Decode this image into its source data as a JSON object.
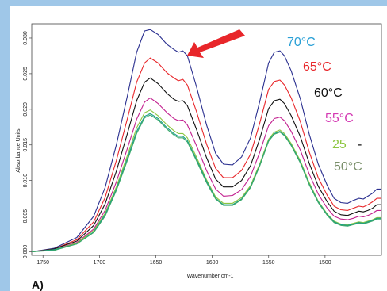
{
  "chart_data": {
    "type": "line",
    "xlabel": "Wavenumber cm-1",
    "ylabel": "Absorbance Units",
    "xlim": [
      1760,
      1450
    ],
    "ylim": [
      -0.0005,
      0.032
    ],
    "x_ticks": [
      "1750",
      "1700",
      "1650",
      "1600",
      "1550",
      "1500"
    ],
    "y_ticks": [
      "0.000",
      "0.005",
      "0.010",
      "0.015",
      "0.020",
      "0.025",
      "0.030"
    ],
    "x_tick_values": [
      1750,
      1700,
      1650,
      1600,
      1550,
      1500
    ],
    "y_tick_values": [
      0,
      0.005,
      0.01,
      0.015,
      0.02,
      0.025,
      0.03
    ],
    "annotations": [
      {
        "text": "70°C",
        "color": "#2aa0d6"
      },
      {
        "text": "65°C",
        "color": "#e8262a"
      },
      {
        "text": "60°C",
        "color": "#111111"
      },
      {
        "text": "55°C",
        "color": "#d43ab3"
      },
      {
        "text": "25",
        "color": "#8cc63f"
      },
      {
        "text": "-",
        "color": "#111111"
      },
      {
        "text": "50°C",
        "color": "#7a8f6a"
      }
    ],
    "arrow_color": "#e8262a",
    "panel_label": "A)",
    "series": [
      {
        "color": "#2a2f8f",
        "x": [
          1760,
          1740,
          1720,
          1705,
          1695,
          1685,
          1675,
          1667,
          1660,
          1655,
          1648,
          1640,
          1634,
          1630,
          1626,
          1622,
          1614,
          1605,
          1597,
          1590,
          1582,
          1574,
          1566,
          1558,
          1550,
          1545,
          1540,
          1536,
          1530,
          1522,
          1514,
          1506,
          1498,
          1492,
          1486,
          1480,
          1475,
          1470,
          1466,
          1462,
          1458,
          1454,
          1450
        ],
        "y": [
          0.0,
          0.0005,
          0.002,
          0.005,
          0.009,
          0.015,
          0.022,
          0.028,
          0.031,
          0.0312,
          0.0305,
          0.0291,
          0.0284,
          0.028,
          0.0282,
          0.0275,
          0.0232,
          0.0178,
          0.0138,
          0.0123,
          0.0122,
          0.0133,
          0.016,
          0.021,
          0.0265,
          0.028,
          0.0282,
          0.0275,
          0.0254,
          0.0215,
          0.0165,
          0.0123,
          0.0093,
          0.0075,
          0.0069,
          0.0068,
          0.0072,
          0.0075,
          0.0074,
          0.0078,
          0.0082,
          0.0088,
          0.0088
        ]
      },
      {
        "color": "#e8262a",
        "x": [
          1760,
          1740,
          1720,
          1705,
          1695,
          1685,
          1675,
          1667,
          1660,
          1655,
          1648,
          1640,
          1634,
          1630,
          1626,
          1622,
          1614,
          1605,
          1597,
          1590,
          1582,
          1574,
          1566,
          1558,
          1550,
          1545,
          1540,
          1536,
          1530,
          1522,
          1514,
          1506,
          1498,
          1492,
          1486,
          1480,
          1475,
          1470,
          1466,
          1462,
          1458,
          1454,
          1450
        ],
        "y": [
          0.0,
          0.0004,
          0.0017,
          0.0042,
          0.0076,
          0.0128,
          0.0188,
          0.0238,
          0.0265,
          0.0272,
          0.0265,
          0.0251,
          0.0244,
          0.024,
          0.0242,
          0.0234,
          0.0197,
          0.0151,
          0.0117,
          0.0104,
          0.0104,
          0.0114,
          0.0137,
          0.018,
          0.0228,
          0.0239,
          0.0241,
          0.0234,
          0.0216,
          0.0183,
          0.014,
          0.0104,
          0.0079,
          0.0064,
          0.0059,
          0.0058,
          0.0061,
          0.0064,
          0.0063,
          0.0066,
          0.007,
          0.0075,
          0.0075
        ]
      },
      {
        "color": "#111111",
        "x": [
          1760,
          1740,
          1720,
          1705,
          1695,
          1685,
          1675,
          1667,
          1660,
          1655,
          1648,
          1640,
          1634,
          1630,
          1626,
          1622,
          1614,
          1605,
          1597,
          1590,
          1582,
          1574,
          1566,
          1558,
          1550,
          1545,
          1540,
          1536,
          1530,
          1522,
          1514,
          1506,
          1498,
          1492,
          1486,
          1480,
          1475,
          1470,
          1466,
          1462,
          1458,
          1454,
          1450
        ],
        "y": [
          0.0,
          0.0004,
          0.0015,
          0.0037,
          0.0067,
          0.0113,
          0.0167,
          0.0212,
          0.0238,
          0.0244,
          0.0236,
          0.0222,
          0.0214,
          0.0211,
          0.0212,
          0.0205,
          0.0172,
          0.0132,
          0.0102,
          0.0091,
          0.0091,
          0.01,
          0.0121,
          0.0158,
          0.0201,
          0.0212,
          0.0214,
          0.0208,
          0.0191,
          0.0162,
          0.0124,
          0.0092,
          0.007,
          0.0057,
          0.0052,
          0.0051,
          0.0054,
          0.0057,
          0.0056,
          0.0058,
          0.0061,
          0.0066,
          0.0066
        ]
      },
      {
        "color": "#c2208f",
        "x": [
          1760,
          1740,
          1720,
          1705,
          1695,
          1685,
          1675,
          1667,
          1660,
          1655,
          1648,
          1640,
          1634,
          1630,
          1626,
          1622,
          1614,
          1605,
          1597,
          1590,
          1582,
          1574,
          1566,
          1558,
          1550,
          1545,
          1540,
          1536,
          1530,
          1522,
          1514,
          1506,
          1498,
          1492,
          1486,
          1480,
          1475,
          1470,
          1466,
          1462,
          1458,
          1454,
          1450
        ],
        "y": [
          0.0,
          0.0003,
          0.0013,
          0.0032,
          0.0058,
          0.0098,
          0.0146,
          0.0186,
          0.021,
          0.0216,
          0.0208,
          0.0195,
          0.0187,
          0.0184,
          0.0185,
          0.0178,
          0.0149,
          0.0114,
          0.0088,
          0.0078,
          0.0079,
          0.0087,
          0.0106,
          0.0139,
          0.0177,
          0.0187,
          0.0189,
          0.0184,
          0.0169,
          0.0143,
          0.0109,
          0.0081,
          0.0061,
          0.005,
          0.0046,
          0.0045,
          0.0047,
          0.005,
          0.0049,
          0.0051,
          0.0054,
          0.0058,
          0.0058
        ]
      },
      {
        "color": "#8cc63f",
        "x": [
          1760,
          1740,
          1720,
          1705,
          1695,
          1685,
          1675,
          1667,
          1660,
          1655,
          1648,
          1640,
          1634,
          1630,
          1626,
          1622,
          1614,
          1605,
          1597,
          1590,
          1582,
          1574,
          1566,
          1558,
          1550,
          1545,
          1540,
          1536,
          1530,
          1522,
          1514,
          1506,
          1498,
          1492,
          1486,
          1480,
          1475,
          1470,
          1466,
          1462,
          1458,
          1454,
          1450
        ],
        "y": [
          0.0,
          0.0003,
          0.0012,
          0.003,
          0.0054,
          0.0091,
          0.0136,
          0.0174,
          0.0195,
          0.0199,
          0.0191,
          0.0178,
          0.017,
          0.0166,
          0.0166,
          0.016,
          0.0133,
          0.0101,
          0.0077,
          0.0068,
          0.0068,
          0.0076,
          0.0093,
          0.0123,
          0.0158,
          0.0168,
          0.0171,
          0.0166,
          0.0152,
          0.0128,
          0.0097,
          0.0071,
          0.0053,
          0.0043,
          0.0039,
          0.0038,
          0.004,
          0.0042,
          0.0041,
          0.0043,
          0.0045,
          0.0048,
          0.0048
        ]
      },
      {
        "color": "#1a9e8a",
        "x": [
          1760,
          1740,
          1720,
          1705,
          1695,
          1685,
          1675,
          1667,
          1660,
          1655,
          1648,
          1640,
          1634,
          1630,
          1626,
          1622,
          1614,
          1605,
          1597,
          1590,
          1582,
          1574,
          1566,
          1558,
          1550,
          1545,
          1540,
          1536,
          1530,
          1522,
          1514,
          1506,
          1498,
          1492,
          1486,
          1480,
          1475,
          1470,
          1466,
          1462,
          1458,
          1454,
          1450
        ],
        "y": [
          0.0,
          0.0003,
          0.0011,
          0.0028,
          0.0052,
          0.0088,
          0.0132,
          0.0169,
          0.019,
          0.0194,
          0.0187,
          0.0174,
          0.0166,
          0.0162,
          0.0162,
          0.0156,
          0.013,
          0.0099,
          0.0075,
          0.0066,
          0.0066,
          0.0074,
          0.0091,
          0.0121,
          0.0156,
          0.0166,
          0.0169,
          0.0164,
          0.015,
          0.0126,
          0.0095,
          0.007,
          0.0052,
          0.0042,
          0.0038,
          0.0037,
          0.0039,
          0.0041,
          0.004,
          0.0042,
          0.0044,
          0.0047,
          0.0047
        ]
      },
      {
        "color": "#3aa86a",
        "x": [
          1760,
          1740,
          1720,
          1705,
          1695,
          1685,
          1675,
          1667,
          1660,
          1655,
          1648,
          1640,
          1634,
          1630,
          1626,
          1622,
          1614,
          1605,
          1597,
          1590,
          1582,
          1574,
          1566,
          1558,
          1550,
          1545,
          1540,
          1536,
          1530,
          1522,
          1514,
          1506,
          1498,
          1492,
          1486,
          1480,
          1475,
          1470,
          1466,
          1462,
          1458,
          1454,
          1450
        ],
        "y": [
          0.0,
          0.0002,
          0.0011,
          0.0027,
          0.005,
          0.0086,
          0.0129,
          0.0166,
          0.0188,
          0.0192,
          0.0185,
          0.0172,
          0.0164,
          0.016,
          0.016,
          0.0154,
          0.0128,
          0.0097,
          0.0074,
          0.0065,
          0.0065,
          0.0073,
          0.009,
          0.012,
          0.0155,
          0.0165,
          0.0168,
          0.0163,
          0.0149,
          0.0125,
          0.0094,
          0.0069,
          0.0051,
          0.0041,
          0.0037,
          0.0036,
          0.0038,
          0.004,
          0.0039,
          0.0041,
          0.0043,
          0.0046,
          0.0046
        ]
      }
    ]
  }
}
